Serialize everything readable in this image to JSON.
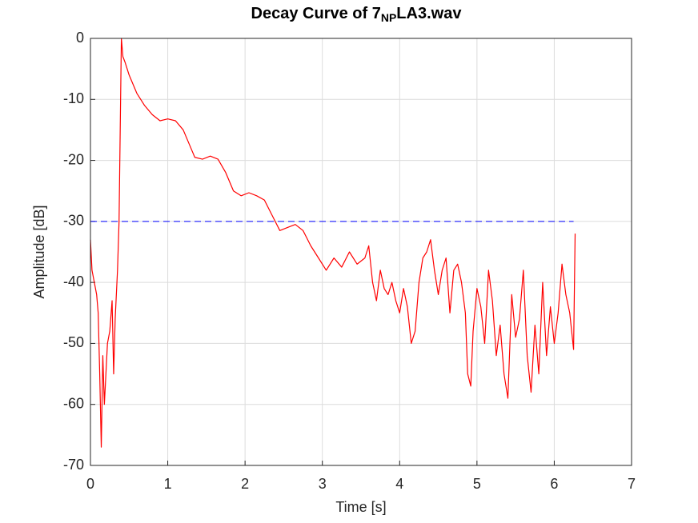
{
  "chart_data": {
    "type": "line",
    "title": [
      "Decay Curve of 7",
      "NP",
      "LA3.wav"
    ],
    "xlabel": "Time [s]",
    "ylabel": "Amplitude [dB]",
    "xlim": [
      0,
      7
    ],
    "xticks": [
      0,
      1,
      2,
      3,
      4,
      5,
      6,
      7
    ],
    "ylim": [
      -70,
      0
    ],
    "yticks": [
      0,
      -10,
      -20,
      -30,
      -40,
      -50,
      -60,
      -70
    ],
    "grid": true,
    "series": [
      {
        "color": "#ff0000",
        "x": [
          0,
          0.02,
          0.05,
          0.08,
          0.1,
          0.12,
          0.14,
          0.16,
          0.18,
          0.2,
          0.22,
          0.25,
          0.28,
          0.3,
          0.32,
          0.35,
          0.37,
          0.39,
          0.4,
          0.42,
          0.45,
          0.5,
          0.6,
          0.7,
          0.8,
          0.9,
          1.0,
          1.1,
          1.2,
          1.3,
          1.35,
          1.45,
          1.55,
          1.65,
          1.75,
          1.85,
          1.95,
          2.05,
          2.15,
          2.25,
          2.35,
          2.45,
          2.55,
          2.65,
          2.75,
          2.85,
          2.95,
          3.05,
          3.15,
          3.25,
          3.35,
          3.45,
          3.55,
          3.6,
          3.65,
          3.7,
          3.75,
          3.8,
          3.85,
          3.9,
          3.95,
          4.0,
          4.05,
          4.1,
          4.15,
          4.2,
          4.25,
          4.3,
          4.35,
          4.4,
          4.45,
          4.5,
          4.55,
          4.6,
          4.65,
          4.7,
          4.75,
          4.8,
          4.85,
          4.88,
          4.92,
          4.95,
          5.0,
          5.05,
          5.1,
          5.15,
          5.2,
          5.25,
          5.3,
          5.35,
          5.4,
          5.45,
          5.5,
          5.55,
          5.6,
          5.65,
          5.7,
          5.75,
          5.8,
          5.85,
          5.9,
          5.95,
          6.0,
          6.05,
          6.1,
          6.15,
          6.2,
          6.25,
          6.27
        ],
        "values": [
          -33,
          -38,
          -40,
          -42,
          -45,
          -55,
          -67,
          -52,
          -60,
          -55,
          -50,
          -48,
          -43,
          -55,
          -46,
          -38,
          -30,
          -10,
          0,
          -3,
          -4,
          -6,
          -9,
          -11,
          -12.5,
          -13.5,
          -13.2,
          -13.5,
          -15,
          -18,
          -19.5,
          -19.8,
          -19.3,
          -19.8,
          -22,
          -25,
          -25.8,
          -25.3,
          -25.8,
          -26.5,
          -29,
          -31.5,
          -31,
          -30.5,
          -31.5,
          -34,
          -36,
          -38,
          -36,
          -37.5,
          -35,
          -37,
          -36,
          -34,
          -40,
          -43,
          -38,
          -41,
          -42,
          -40,
          -43,
          -45,
          -41,
          -44,
          -50,
          -48,
          -40,
          -36,
          -35,
          -33,
          -38,
          -42,
          -38,
          -36,
          -45,
          -38,
          -37,
          -40,
          -45,
          -55,
          -57,
          -48,
          -41,
          -44,
          -50,
          -38,
          -43,
          -52,
          -47,
          -55,
          -59,
          -42,
          -49,
          -46,
          -38,
          -52,
          -58,
          -47,
          -55,
          -40,
          -52,
          -44,
          -50,
          -45,
          -37,
          -42,
          -45,
          -51,
          -32
        ]
      },
      {
        "color": "#0000ff",
        "dashed": true,
        "x": [
          0,
          6.25
        ],
        "values": [
          -30,
          -30
        ]
      }
    ]
  }
}
